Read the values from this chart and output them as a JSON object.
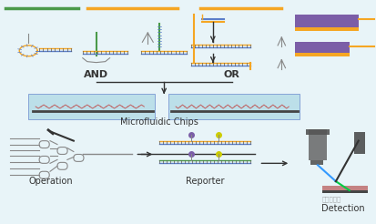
{
  "bg_color": "#e8f4f8",
  "white": "#ffffff",
  "orange": "#f5a623",
  "blue": "#5b7ec9",
  "purple": "#7b5ea7",
  "green": "#4a9a4a",
  "gray": "#888888",
  "dark": "#333333",
  "teal_bg": "#b8dde8",
  "label_and": "AND",
  "label_or": "OR",
  "label_chips": "Microfluidic Chips",
  "label_operation": "Operation",
  "label_reporter": "Reporter",
  "label_detection": "Detection",
  "fig_width": 4.14,
  "fig_height": 2.46
}
